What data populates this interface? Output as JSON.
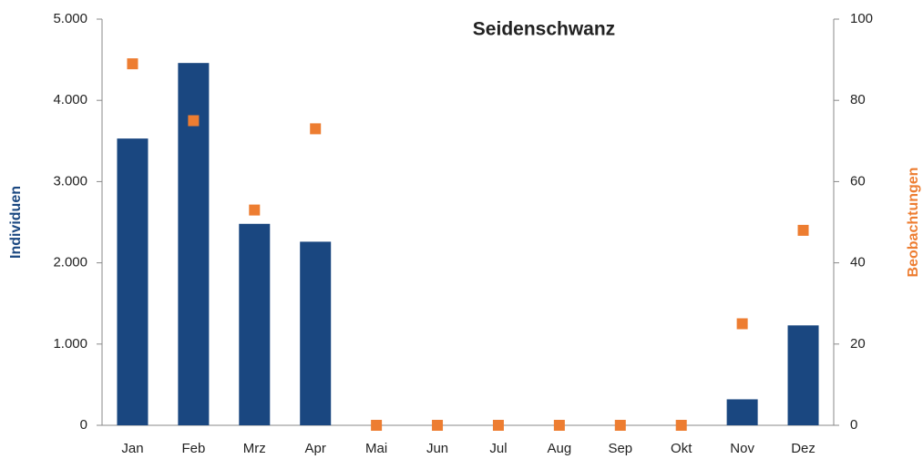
{
  "chart_data": {
    "type": "bar_scatter",
    "title": "Seidenschwanz",
    "y_label": "Individuen",
    "y2_label": "Beobachtungen",
    "categories": [
      "Jan",
      "Feb",
      "Mrz",
      "Apr",
      "Mai",
      "Jun",
      "Jul",
      "Aug",
      "Sep",
      "Okt",
      "Nov",
      "Dez"
    ],
    "series": [
      {
        "type": "bar",
        "color": "#1a4780",
        "values": [
          3530,
          4460,
          2480,
          2260,
          0,
          0,
          0,
          0,
          0,
          0,
          320,
          1230
        ]
      },
      {
        "type": "scatter",
        "axis": "y2",
        "color": "#ed7d31",
        "values": [
          89,
          75,
          53,
          73,
          0,
          0,
          0,
          0,
          0,
          0,
          25,
          48
        ]
      }
    ],
    "ylim": [
      0,
      5000
    ],
    "yticks": [
      {
        "value": 0,
        "label": "0"
      },
      {
        "value": 1000,
        "label": "1.000"
      },
      {
        "value": 2000,
        "label": "2.000"
      },
      {
        "value": 3000,
        "label": "3.000"
      },
      {
        "value": 4000,
        "label": "4.000"
      },
      {
        "value": 5000,
        "label": "5.000"
      }
    ],
    "y2lim": [
      0,
      100
    ],
    "y2ticks": [
      0,
      20,
      40,
      60,
      80,
      100
    ],
    "grid": false
  }
}
